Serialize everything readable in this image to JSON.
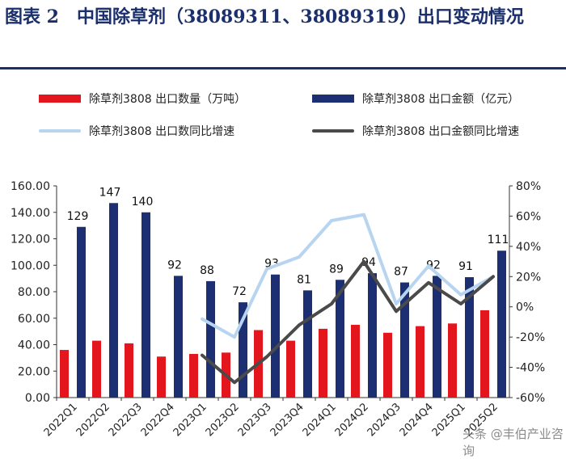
{
  "title": "图表 2　中国除草剂（38089311、38089319）出口变动情况",
  "watermark": "头条 @丰伯产业咨询",
  "legend": {
    "qty": "除草剂3808 出口数量（万吨）",
    "amt": "除草剂3808 出口金额（亿元）",
    "qty_yoy": "除草剂3808 出口数同比增速",
    "amt_yoy": "除草剂3808 出口金额同比增速"
  },
  "colors": {
    "qty": "#e3161d",
    "amt": "#1c2f73",
    "qty_yoy": "#b7d5f0",
    "amt_yoy": "#4a4a4a"
  },
  "chart_data": {
    "type": "bar",
    "categories": [
      "2022Q1",
      "2022Q2",
      "2022Q3",
      "2022Q4",
      "2023Q1",
      "2023Q2",
      "2023Q3",
      "2023Q4",
      "2024Q1",
      "2024Q2",
      "2024Q3",
      "2024Q4",
      "2025Q1",
      "2025Q2"
    ],
    "series": [
      {
        "name": "除草剂3808 出口数量（万吨）",
        "axis": "left",
        "kind": "bar",
        "values": [
          36,
          43,
          41,
          31,
          33,
          34,
          51,
          43,
          52,
          55,
          49,
          54,
          56,
          66
        ]
      },
      {
        "name": "除草剂3808 出口金额（亿元）",
        "axis": "left",
        "kind": "bar",
        "values": [
          129,
          147,
          140,
          92,
          88,
          72,
          93,
          81,
          89,
          94,
          87,
          92,
          91,
          111
        ],
        "labels": [
          "129",
          "147",
          "140",
          "92",
          "88",
          "72",
          "93",
          "81",
          "89",
          "94",
          "87",
          "92",
          "91",
          "111"
        ]
      },
      {
        "name": "除草剂3808 出口数同比增速",
        "axis": "right",
        "kind": "line",
        "values": [
          null,
          null,
          null,
          null,
          -8,
          -20,
          25,
          33,
          57,
          61,
          2,
          27,
          8,
          20
        ]
      },
      {
        "name": "除草剂3808 出口金额同比增速",
        "axis": "right",
        "kind": "line",
        "values": [
          null,
          null,
          null,
          null,
          -32,
          -50,
          -33,
          -12,
          2,
          30,
          -3,
          16,
          2,
          20
        ]
      }
    ],
    "ylim": [
      0,
      160
    ],
    "yticks": [
      "0.00",
      "20.00",
      "40.00",
      "60.00",
      "80.00",
      "100.00",
      "120.00",
      "140.00",
      "160.00"
    ],
    "y2lim": [
      -60,
      80
    ],
    "y2ticks": [
      "-60%",
      "-40%",
      "-20%",
      "0%",
      "20%",
      "40%",
      "60%",
      "80%"
    ],
    "legend_position": "top"
  }
}
